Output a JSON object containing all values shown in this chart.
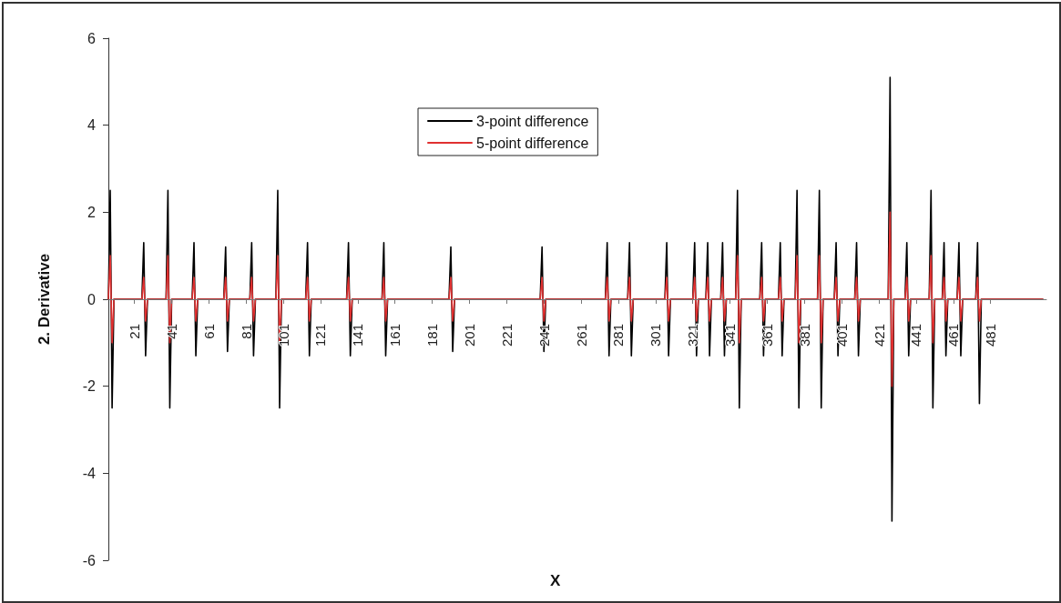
{
  "chart_data": {
    "type": "line",
    "xlabel": "X",
    "ylabel": "2. Derivative",
    "x": [
      7,
      8,
      9,
      10,
      25,
      26,
      27,
      28,
      38,
      39,
      40,
      41,
      52,
      53,
      54,
      55,
      69,
      70,
      71,
      72,
      83,
      84,
      85,
      86,
      97,
      98,
      99,
      100,
      113,
      114,
      115,
      116,
      135,
      136,
      137,
      138,
      154,
      155,
      156,
      157,
      190,
      191,
      192,
      193,
      239,
      240,
      241,
      242,
      274,
      275,
      276,
      277,
      286,
      287,
      288,
      289,
      306,
      307,
      308,
      309,
      321,
      322,
      323,
      324,
      328,
      329,
      330,
      331,
      336,
      337,
      338,
      339,
      344,
      345,
      346,
      347,
      357,
      358,
      359,
      360,
      367,
      368,
      369,
      370,
      376,
      377,
      378,
      379,
      388,
      389,
      390,
      391,
      397,
      398,
      399,
      400,
      408,
      409,
      410,
      411,
      426,
      427,
      428,
      429,
      435,
      436,
      437,
      438,
      448,
      449,
      450,
      451,
      455,
      456,
      457,
      458,
      463,
      464,
      465,
      466,
      473,
      474,
      475,
      476,
      509
    ],
    "series": [
      {
        "name": "3-point difference",
        "color": "#000000",
        "values": [
          0,
          2.5,
          -2.5,
          0,
          0,
          1.3,
          -1.3,
          0,
          0,
          2.5,
          -2.5,
          0,
          0,
          1.3,
          -1.3,
          0,
          0,
          1.2,
          -1.2,
          0,
          0,
          1.3,
          -1.3,
          0,
          0,
          2.5,
          -2.5,
          0,
          0,
          1.3,
          -1.3,
          0,
          0,
          1.3,
          -1.3,
          0,
          0,
          1.3,
          -1.3,
          0,
          0,
          1.2,
          -1.2,
          0,
          0,
          1.2,
          -1.2,
          0,
          0,
          1.3,
          -1.3,
          0,
          0,
          1.3,
          -1.3,
          0,
          0,
          1.3,
          -1.3,
          0,
          0,
          1.3,
          -1.3,
          0,
          0,
          1.3,
          -1.3,
          0,
          0,
          1.3,
          -1.3,
          0,
          0,
          2.5,
          -2.5,
          0,
          0,
          1.3,
          -1.3,
          0,
          0,
          1.3,
          -1.3,
          0,
          0,
          2.5,
          -2.5,
          0,
          0,
          2.5,
          -2.5,
          0,
          0,
          1.3,
          -1.3,
          0,
          0,
          1.3,
          -1.3,
          0,
          0,
          5.1,
          -5.1,
          0,
          0,
          1.3,
          -1.3,
          0,
          0,
          2.5,
          -2.5,
          0,
          0,
          1.3,
          -1.3,
          0,
          0,
          1.3,
          -1.3,
          0,
          0,
          1.3,
          -2.4,
          0,
          0
        ]
      },
      {
        "name": "5-point difference",
        "color": "#e03030",
        "values": [
          0,
          1,
          -1,
          0,
          0,
          0.5,
          -0.5,
          0,
          0,
          1,
          -1,
          0,
          0,
          0.5,
          -0.5,
          0,
          0,
          0.5,
          -0.5,
          0,
          0,
          0.5,
          -0.5,
          0,
          0,
          1,
          -1,
          0,
          0,
          0.5,
          -0.5,
          0,
          0,
          0.5,
          -0.5,
          0,
          0,
          0.5,
          -0.5,
          0,
          0,
          0.5,
          -0.5,
          0,
          0,
          0.5,
          -0.5,
          0,
          0,
          0.5,
          -0.5,
          0,
          0,
          0.5,
          -0.5,
          0,
          0,
          0.5,
          -0.5,
          0,
          0,
          0.5,
          -0.5,
          0,
          0,
          0.5,
          -0.5,
          0,
          0,
          0.5,
          -0.5,
          0,
          0,
          1,
          -1,
          0,
          0,
          0.5,
          -0.5,
          0,
          0,
          0.5,
          -0.5,
          0,
          0,
          1,
          -1,
          0,
          0,
          1,
          -1,
          0,
          0,
          0.5,
          -0.5,
          0,
          0,
          0.5,
          -0.5,
          0,
          0,
          2,
          -2,
          0,
          0,
          0.5,
          -0.5,
          0,
          0,
          1,
          -1,
          0,
          0,
          0.5,
          -0.5,
          0,
          0,
          0.5,
          -0.5,
          0,
          0,
          0.5,
          -0.5,
          0,
          0
        ]
      }
    ],
    "xlim": [
      7,
      511
    ],
    "xticks": [
      21,
      41,
      61,
      81,
      101,
      121,
      141,
      161,
      181,
      201,
      221,
      241,
      261,
      281,
      301,
      321,
      341,
      361,
      381,
      401,
      421,
      441,
      461,
      481
    ],
    "ylim": [
      -6,
      6
    ],
    "yticks": [
      -6,
      -4,
      -2,
      0,
      2,
      4,
      6
    ],
    "grid": false,
    "legend": "top",
    "marker": "none",
    "line_style": "solid"
  }
}
